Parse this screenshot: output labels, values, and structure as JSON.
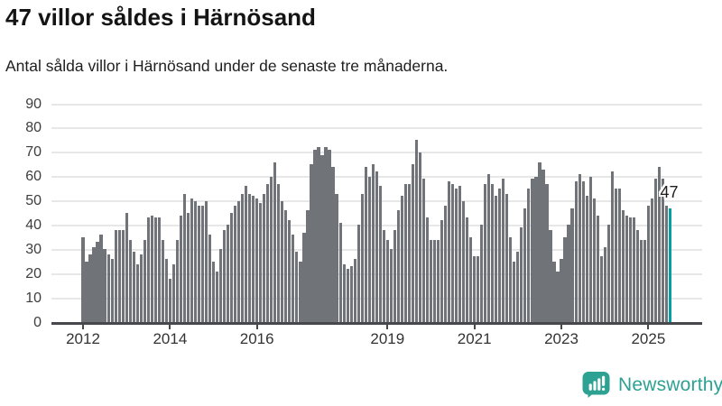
{
  "header": {
    "title": "47 villor såldes i Härnösand",
    "subtitle": "Antal sålda villor i Härnösand under de senaste tre månaderna."
  },
  "chart_data": {
    "type": "bar",
    "title": "47 villor såldes i Härnösand",
    "subtitle": "Antal sålda villor i Härnösand under de senaste tre månaderna.",
    "ylabel": "",
    "xlabel": "",
    "ylim": [
      0,
      90
    ],
    "grid": true,
    "yticks": [
      0,
      10,
      20,
      30,
      40,
      50,
      60,
      70,
      80,
      90
    ],
    "xticks": [
      {
        "label": "2012",
        "year": 2012
      },
      {
        "label": "2014",
        "year": 2014
      },
      {
        "label": "2016",
        "year": 2016
      },
      {
        "label": "2019",
        "year": 2019
      },
      {
        "label": "2021",
        "year": 2021
      },
      {
        "label": "2023",
        "year": 2023
      },
      {
        "label": "2025",
        "year": 2025
      }
    ],
    "start": {
      "year": 2012,
      "month": 1
    },
    "series_by_year": [
      {
        "year": 2012,
        "values": [
          35,
          25,
          28,
          31,
          33,
          36,
          30,
          28,
          26,
          38,
          38,
          38
        ]
      },
      {
        "year": 2013,
        "values": [
          45,
          34,
          29,
          24,
          28,
          34,
          43,
          44,
          43,
          43,
          34,
          26
        ]
      },
      {
        "year": 2014,
        "values": [
          18,
          24,
          34,
          44,
          53,
          45,
          51,
          50,
          48,
          48,
          50,
          36
        ]
      },
      {
        "year": 2015,
        "values": [
          25,
          21,
          30,
          38,
          40,
          45,
          48,
          50,
          53,
          56,
          53,
          52
        ]
      },
      {
        "year": 2016,
        "values": [
          51,
          49,
          53,
          57,
          60,
          66,
          57,
          50,
          46,
          42,
          36,
          29
        ]
      },
      {
        "year": 2017,
        "values": [
          25,
          37,
          46,
          65,
          71,
          72,
          69,
          72,
          71,
          64,
          53,
          41
        ]
      },
      {
        "year": 2018,
        "values": [
          24,
          22,
          23,
          26,
          40,
          53,
          64,
          60,
          65,
          62,
          56,
          38
        ]
      },
      {
        "year": 2019,
        "values": [
          34,
          30,
          38,
          46,
          52,
          57,
          57,
          65,
          75,
          70,
          59,
          43
        ]
      },
      {
        "year": 2020,
        "values": [
          34,
          34,
          34,
          42,
          48,
          58,
          57,
          55,
          56,
          50,
          43,
          35
        ]
      },
      {
        "year": 2021,
        "values": [
          27,
          27,
          40,
          57,
          61,
          57,
          52,
          55,
          59,
          53,
          35,
          25
        ]
      },
      {
        "year": 2022,
        "values": [
          29,
          39,
          47,
          55,
          59,
          60,
          66,
          63,
          57,
          38,
          25,
          21
        ]
      },
      {
        "year": 2023,
        "values": [
          26,
          35,
          40,
          47,
          58,
          61,
          58,
          52,
          60,
          51,
          44,
          27
        ]
      },
      {
        "year": 2024,
        "values": [
          31,
          40,
          62,
          55,
          55,
          46,
          44,
          43,
          43,
          38,
          34,
          34
        ]
      },
      {
        "year": 2025,
        "values": [
          48,
          51,
          59,
          64,
          59,
          48,
          47
        ]
      }
    ],
    "highlight": {
      "position": "last",
      "value": 47,
      "label": "47",
      "color": "#00a0a4"
    },
    "bar_color": "#707478",
    "grid_color": "#e7e7e7",
    "axis_color": "#46484b",
    "tick_label_color": "#333333",
    "legend_position": "none"
  },
  "footer": {
    "brand": "Newsworthy",
    "brand_color": "#2da192",
    "brand_icon": "bar-chart-speech-bubble-icon"
  }
}
